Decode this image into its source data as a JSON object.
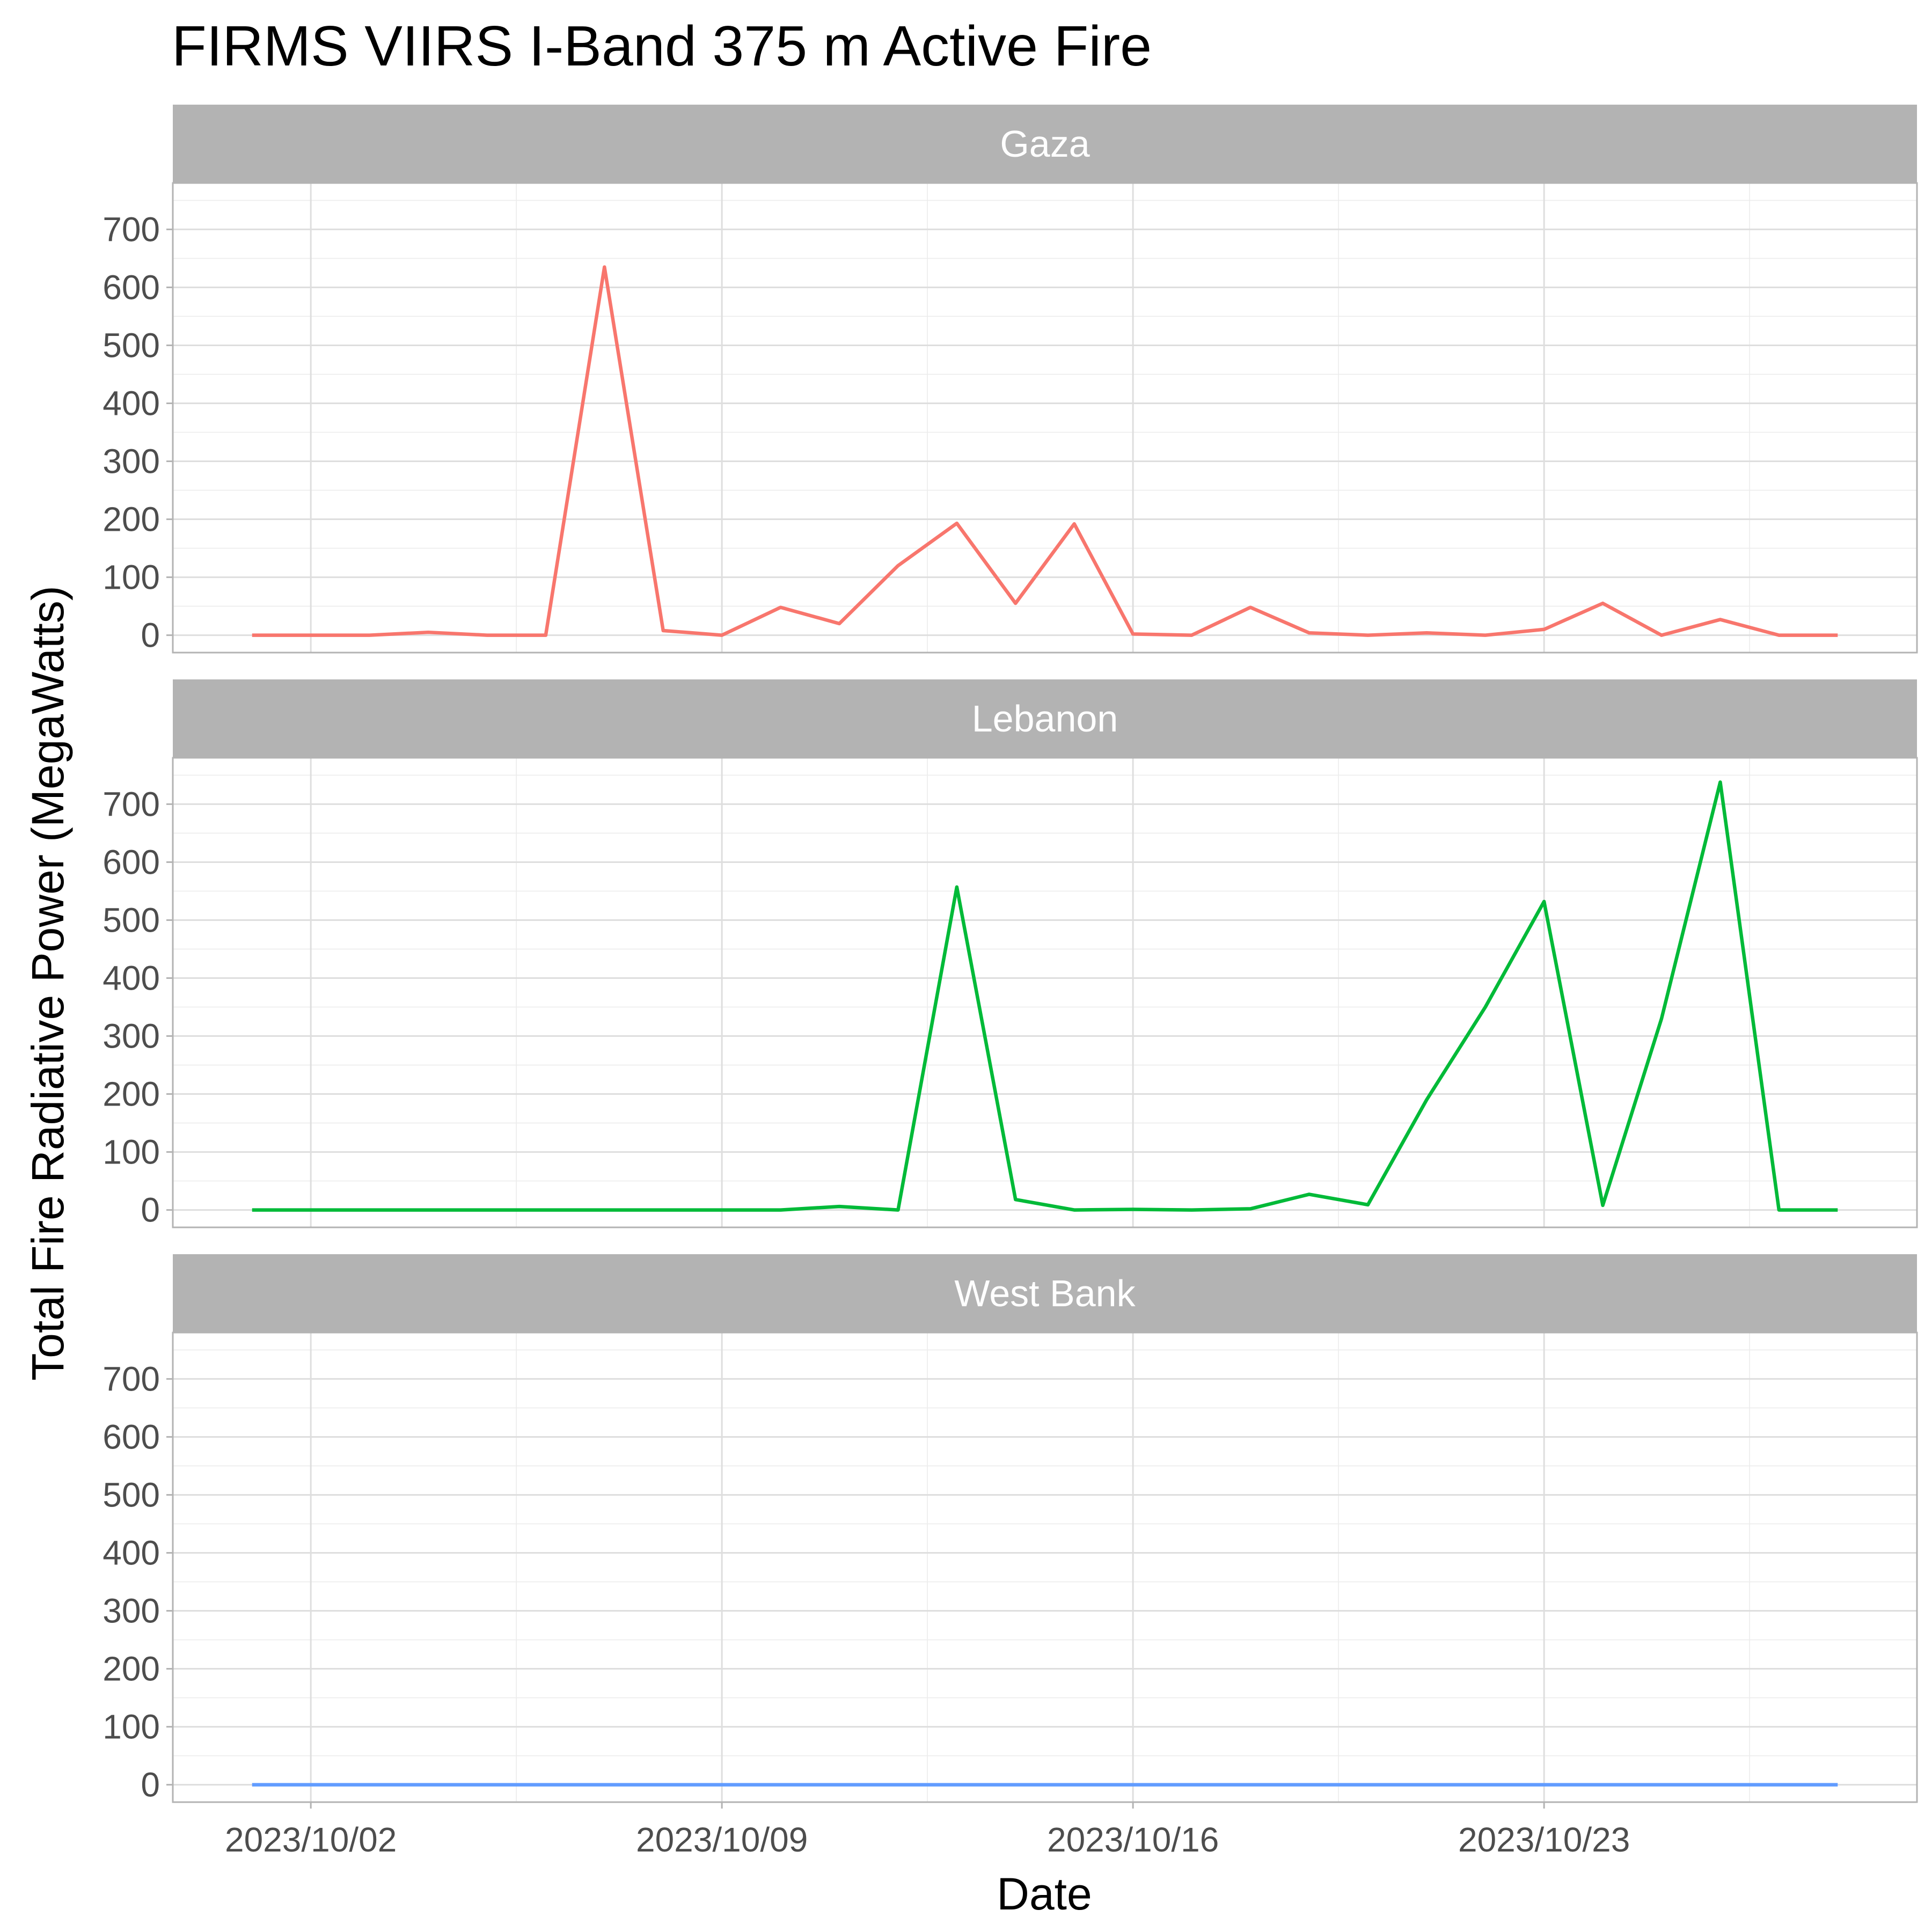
{
  "chart_data": {
    "type": "line",
    "title": "FIRMS VIIRS I-Band 375 m Active Fire",
    "xlabel": "Date",
    "ylabel": "Total Fire Radiative Power (MegaWatts)",
    "ylim": [
      -30,
      780
    ],
    "y_ticks": [
      0,
      100,
      200,
      300,
      400,
      500,
      600,
      700
    ],
    "x_ticks": [
      "2023/10/02",
      "2023/10/09",
      "2023/10/16",
      "2023/10/23"
    ],
    "grid": true,
    "x": [
      "2023/10/01",
      "2023/10/02",
      "2023/10/03",
      "2023/10/04",
      "2023/10/05",
      "2023/10/06",
      "2023/10/07",
      "2023/10/08",
      "2023/10/09",
      "2023/10/10",
      "2023/10/11",
      "2023/10/12",
      "2023/10/13",
      "2023/10/14",
      "2023/10/15",
      "2023/10/16",
      "2023/10/17",
      "2023/10/18",
      "2023/10/19",
      "2023/10/20",
      "2023/10/21",
      "2023/10/22",
      "2023/10/23",
      "2023/10/24",
      "2023/10/25",
      "2023/10/26",
      "2023/10/27",
      "2023/10/28"
    ],
    "series": [
      {
        "name": "Gaza",
        "color": "#F8766D",
        "values": [
          0,
          0,
          0,
          5,
          0,
          0,
          635,
          8,
          0,
          48,
          20,
          120,
          193,
          55,
          192,
          2,
          0,
          48,
          4,
          0,
          4,
          0,
          10,
          55,
          0,
          27,
          0,
          0
        ]
      },
      {
        "name": "Lebanon",
        "color": "#00BA38",
        "values": [
          0,
          0,
          0,
          0,
          0,
          0,
          0,
          0,
          0,
          0,
          6,
          0,
          557,
          18,
          0,
          1,
          0,
          2,
          27,
          9,
          190,
          350,
          532,
          8,
          330,
          738,
          0,
          0
        ]
      },
      {
        "name": "West Bank",
        "color": "#619CFF",
        "values": [
          0,
          0,
          0,
          0,
          0,
          0,
          0,
          0,
          0,
          0,
          0,
          0,
          0,
          0,
          0,
          0,
          0,
          0,
          0,
          0,
          0,
          0,
          0,
          0,
          0,
          0,
          0,
          0
        ]
      }
    ]
  }
}
